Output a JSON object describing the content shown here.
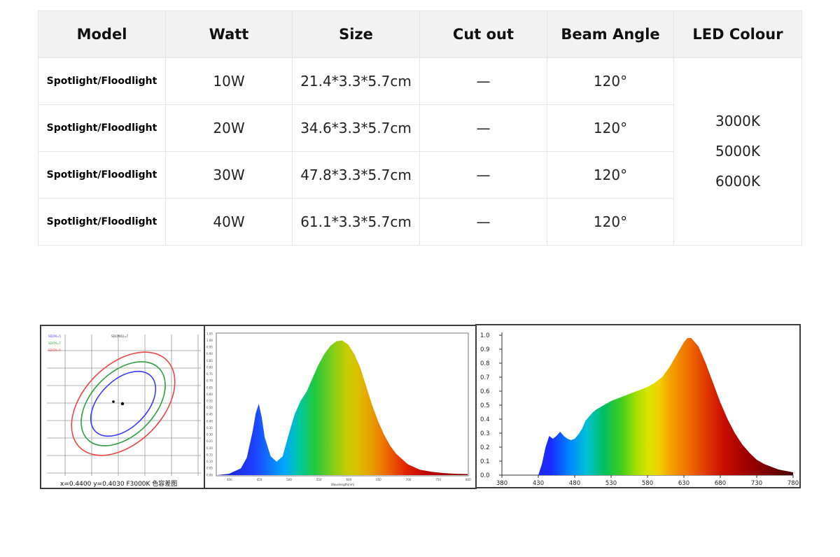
{
  "table": {
    "headers": [
      "Model",
      "Watt",
      "Size",
      "Cut out",
      "Beam Angle",
      "LED Colour"
    ],
    "rows": [
      {
        "model": "Spotlight/Floodlight",
        "watt": "10W",
        "size": "21.4*3.3*5.7cm",
        "cutout": "—",
        "beam": "120°"
      },
      {
        "model": "Spotlight/Floodlight",
        "watt": "20W",
        "size": "34.6*3.3*5.7cm",
        "cutout": "—",
        "beam": "120°"
      },
      {
        "model": "Spotlight/Floodlight",
        "watt": "30W",
        "size": "47.8*3.3*5.7cm",
        "cutout": "—",
        "beam": "120°"
      },
      {
        "model": "Spotlight/Floodlight",
        "watt": "40W",
        "size": "61.1*3.3*5.7cm",
        "cutout": "—",
        "beam": "120°"
      }
    ],
    "led_colours": [
      "3000K",
      "5000K",
      "6000K"
    ]
  },
  "ellipse_chart": {
    "caption": "x=0.4400   y=0.4030   F3000K 色容差图",
    "title": "SDCM(D)=7",
    "legend": [
      {
        "label": "SDCM=5",
        "color": "#3b3bff"
      },
      {
        "label": "SDCM=7",
        "color": "#2e9e3e"
      },
      {
        "label": "SDCM=9",
        "color": "#ee4444"
      }
    ]
  },
  "chart_data": [
    {
      "type": "area",
      "xlabel": "Wavelength(nm)",
      "xlim": [
        380,
        800
      ],
      "ylim": [
        0,
        1.05
      ],
      "y_ticks": [
        "0.00",
        "0.05",
        "0.10",
        "0.15",
        "0.20",
        "0.25",
        "0.30",
        "0.35",
        "0.40",
        "0.45",
        "0.50",
        "0.55",
        "0.60",
        "0.65",
        "0.70",
        "0.75",
        "0.80",
        "0.85",
        "0.90",
        "0.95",
        "1.00",
        "1.05"
      ],
      "x_ticks": [
        400,
        450,
        500,
        550,
        600,
        650,
        700,
        750,
        800
      ],
      "x": [
        380,
        400,
        420,
        430,
        440,
        445,
        450,
        455,
        460,
        470,
        480,
        490,
        500,
        510,
        520,
        530,
        540,
        550,
        560,
        570,
        580,
        590,
        600,
        610,
        620,
        630,
        640,
        650,
        660,
        670,
        680,
        700,
        720,
        740,
        760,
        780,
        800
      ],
      "values": [
        0,
        0.01,
        0.05,
        0.13,
        0.33,
        0.46,
        0.53,
        0.43,
        0.28,
        0.14,
        0.1,
        0.14,
        0.3,
        0.45,
        0.55,
        0.62,
        0.72,
        0.82,
        0.9,
        0.96,
        0.995,
        1.0,
        0.97,
        0.9,
        0.8,
        0.66,
        0.52,
        0.4,
        0.3,
        0.22,
        0.16,
        0.08,
        0.04,
        0.025,
        0.015,
        0.01,
        0.008
      ]
    },
    {
      "type": "area",
      "xlim": [
        380,
        780
      ],
      "ylim": [
        0,
        1.0
      ],
      "y_ticks": [
        "0.0",
        "0.1",
        "0.2",
        "0.3",
        "0.4",
        "0.5",
        "0.6",
        "0.7",
        "0.8",
        "0.9",
        "1.0"
      ],
      "x_ticks": [
        380,
        430,
        480,
        530,
        580,
        630,
        680,
        730,
        780
      ],
      "x": [
        430,
        435,
        440,
        445,
        450,
        455,
        460,
        465,
        470,
        475,
        480,
        485,
        490,
        495,
        500,
        505,
        510,
        520,
        530,
        540,
        550,
        560,
        570,
        580,
        590,
        600,
        610,
        620,
        630,
        635,
        640,
        650,
        660,
        670,
        680,
        690,
        700,
        710,
        720,
        730,
        740,
        750,
        760,
        770,
        780
      ],
      "values": [
        0,
        0.08,
        0.2,
        0.28,
        0.26,
        0.28,
        0.31,
        0.28,
        0.26,
        0.25,
        0.26,
        0.29,
        0.33,
        0.39,
        0.42,
        0.45,
        0.47,
        0.5,
        0.53,
        0.55,
        0.57,
        0.59,
        0.61,
        0.63,
        0.66,
        0.7,
        0.77,
        0.86,
        0.95,
        0.98,
        0.98,
        0.92,
        0.8,
        0.66,
        0.52,
        0.4,
        0.3,
        0.22,
        0.16,
        0.11,
        0.08,
        0.06,
        0.04,
        0.03,
        0.02
      ]
    }
  ]
}
